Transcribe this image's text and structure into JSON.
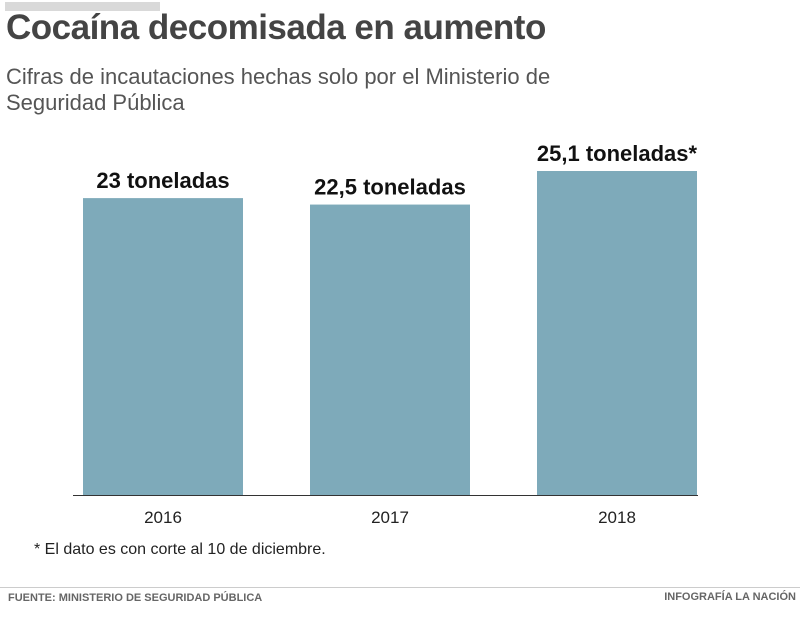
{
  "chart_data": {
    "type": "bar",
    "title": "Cocaína decomisada en aumento",
    "subtitle": "Cifras de incautaciones hechas solo por el Ministerio de Seguridad Pública",
    "categories": [
      "2016",
      "2017",
      "2018"
    ],
    "values": [
      23,
      22.5,
      25.1
    ],
    "data_labels": [
      "23 toneladas",
      "22,5 toneladas",
      "25,1 toneladas*"
    ],
    "unit": "toneladas",
    "xlabel": "",
    "ylabel": "",
    "ylim": [
      0,
      25.1
    ],
    "grid": false,
    "bar_color": "#7eaaba"
  },
  "note": "* El dato es con corte al 10 de diciembre.",
  "source": "FUENTE: MINISTERIO DE SEGURIDAD PÚBLICA",
  "credit": "INFOGRAFÍA LA NACIÓN"
}
